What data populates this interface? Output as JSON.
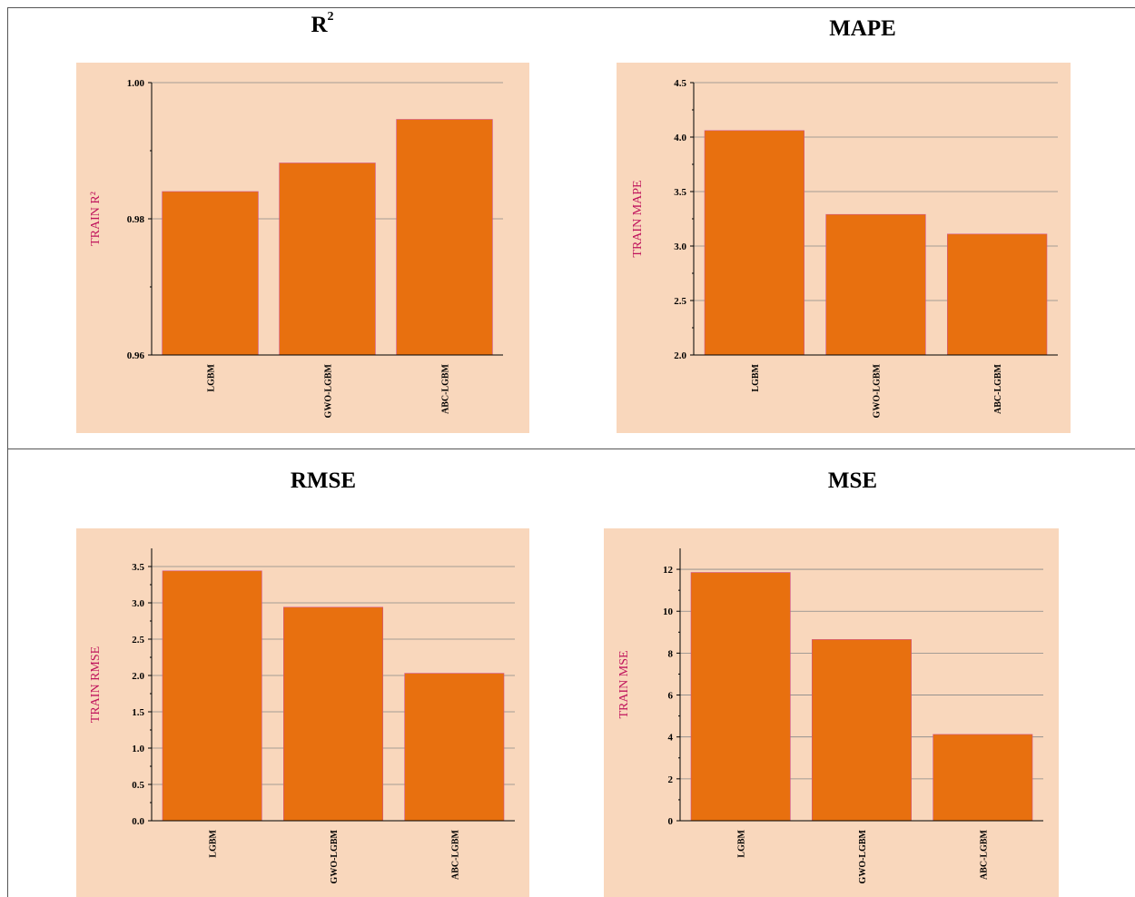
{
  "colors": {
    "panel_bg": "#f9d7bc",
    "bar": "#e8700f",
    "ylabel": "#c0145c",
    "grid": "#888888"
  },
  "titles": {
    "r2": {
      "main": "R",
      "sup": "2"
    },
    "mape": "MAPE",
    "rmse": "RMSE",
    "mse": "MSE"
  },
  "chart_data": [
    {
      "type": "bar",
      "categories": [
        "LGBM",
        "GWO-LGBM",
        "ABC-LGBM"
      ],
      "values": [
        0.984,
        0.9882,
        0.9946
      ],
      "ylabel": "TRAIN R²",
      "ylim": [
        0.96,
        1.0
      ],
      "yticks": [
        "0.96",
        "0.98",
        "1.00"
      ],
      "ytick_values": [
        0.96,
        0.98,
        1.0
      ],
      "grid": true
    },
    {
      "type": "bar",
      "categories": [
        "LGBM",
        "GWO-LGBM",
        "ABC-LGBM"
      ],
      "values": [
        4.06,
        3.29,
        3.11
      ],
      "ylabel": "TRAIN MAPE",
      "ylim": [
        2.0,
        4.5
      ],
      "yticks": [
        "2.0",
        "2.5",
        "3.0",
        "3.5",
        "4.0",
        "4.5"
      ],
      "ytick_values": [
        2.0,
        2.5,
        3.0,
        3.5,
        4.0,
        4.5
      ],
      "grid": true
    },
    {
      "type": "bar",
      "categories": [
        "LGBM",
        "GWO-LGBM",
        "ABC-LGBM"
      ],
      "values": [
        3.44,
        2.94,
        2.03
      ],
      "ylabel": "TRAIN RMSE",
      "ylim": [
        0,
        3.75
      ],
      "yticks": [
        "0.0",
        "0.5",
        "1.0",
        "1.5",
        "2.0",
        "2.5",
        "3.0",
        "3.5"
      ],
      "ytick_values": [
        0,
        0.5,
        1.0,
        1.5,
        2.0,
        2.5,
        3.0,
        3.5
      ],
      "grid": true
    },
    {
      "type": "bar",
      "categories": [
        "LGBM",
        "GWO-LGBM",
        "ABC-LGBM"
      ],
      "values": [
        11.85,
        8.65,
        4.12
      ],
      "ylabel": "TRAIN MSE",
      "ylim": [
        0,
        13
      ],
      "yticks": [
        "0",
        "2",
        "4",
        "6",
        "8",
        "10",
        "12"
      ],
      "ytick_values": [
        0,
        2,
        4,
        6,
        8,
        10,
        12
      ],
      "grid": true
    }
  ]
}
